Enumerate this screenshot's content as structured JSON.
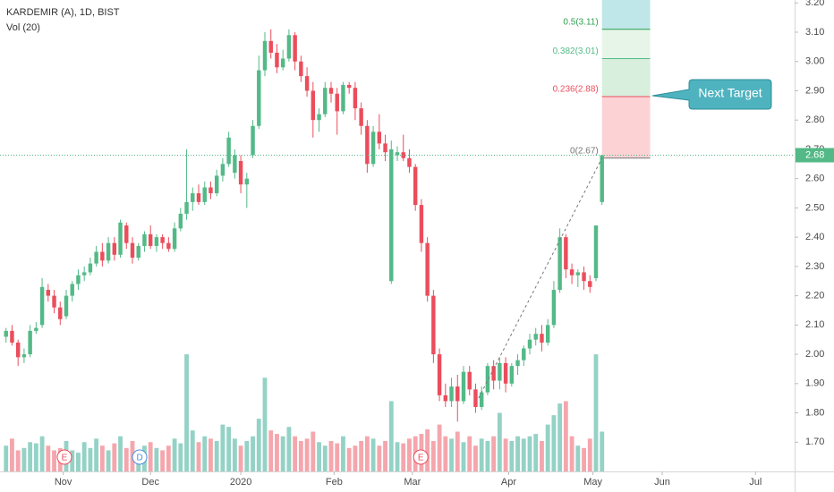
{
  "chart_data": {
    "type": "candlestick",
    "title": "KARDEMIR (A), 1D, BIST",
    "volume_title": "Vol (20)",
    "open": [
      2.06,
      2.08,
      2.04,
      1.99,
      2.0,
      2.08,
      2.1,
      2.22,
      2.2,
      2.16,
      2.13,
      2.2,
      2.24,
      2.27,
      2.28,
      2.31,
      2.35,
      2.32,
      2.38,
      2.34,
      2.44,
      2.38,
      2.33,
      2.37,
      2.41,
      2.37,
      2.4,
      2.38,
      2.36,
      2.43,
      2.48,
      2.52,
      2.55,
      2.52,
      2.57,
      2.55,
      2.61,
      2.65,
      2.62,
      2.66,
      2.58,
      2.68,
      2.78,
      2.97,
      3.07,
      3.03,
      2.98,
      3.01,
      3.09,
      3.0,
      2.95,
      2.9,
      2.8,
      2.82,
      2.91,
      2.89,
      2.83,
      2.92,
      2.91,
      2.84,
      2.78,
      2.65,
      2.76,
      2.72,
      2.25,
      2.68,
      2.69,
      2.67,
      2.64,
      2.51,
      2.38,
      2.2,
      2.0,
      1.86,
      1.84,
      1.89,
      1.84,
      1.94,
      1.88,
      1.82,
      1.87,
      1.96,
      1.91,
      1.97,
      1.9,
      1.96,
      1.98,
      2.02,
      2.05,
      2.07,
      2.04,
      2.1,
      2.22,
      2.4,
      2.29,
      2.27,
      2.28,
      2.25,
      2.26,
      2.52
    ],
    "high": [
      2.09,
      2.1,
      2.05,
      2.02,
      2.1,
      2.11,
      2.26,
      2.24,
      2.22,
      2.18,
      2.22,
      2.25,
      2.29,
      2.3,
      2.33,
      2.37,
      2.38,
      2.4,
      2.4,
      2.46,
      2.45,
      2.4,
      2.38,
      2.42,
      2.44,
      2.41,
      2.41,
      2.4,
      2.45,
      2.5,
      2.7,
      2.57,
      2.58,
      2.59,
      2.59,
      2.63,
      2.67,
      2.76,
      2.7,
      2.68,
      2.62,
      2.8,
      3.02,
      3.1,
      3.11,
      3.06,
      3.04,
      3.11,
      3.1,
      3.02,
      2.98,
      2.93,
      2.84,
      2.93,
      2.93,
      2.91,
      2.93,
      2.93,
      2.93,
      2.86,
      2.8,
      2.78,
      2.82,
      2.75,
      2.73,
      2.71,
      2.75,
      2.7,
      2.65,
      2.53,
      2.4,
      2.22,
      2.02,
      1.9,
      1.92,
      1.93,
      1.96,
      1.96,
      1.9,
      1.89,
      1.97,
      1.98,
      1.99,
      1.99,
      1.97,
      2.0,
      2.03,
      2.07,
      2.09,
      2.1,
      2.12,
      2.25,
      2.43,
      2.41,
      2.31,
      2.29,
      2.3,
      2.27,
      2.44,
      2.68
    ],
    "low": [
      2.04,
      2.03,
      1.96,
      1.97,
      1.99,
      2.07,
      2.09,
      2.18,
      2.14,
      2.1,
      2.12,
      2.18,
      2.22,
      2.25,
      2.27,
      2.3,
      2.3,
      2.31,
      2.32,
      2.33,
      2.36,
      2.31,
      2.32,
      2.35,
      2.36,
      2.35,
      2.36,
      2.35,
      2.35,
      2.42,
      2.46,
      2.49,
      2.51,
      2.51,
      2.53,
      2.54,
      2.59,
      2.64,
      2.6,
      2.55,
      2.5,
      2.67,
      2.77,
      2.95,
      3.01,
      2.96,
      2.97,
      3.0,
      2.97,
      2.93,
      2.88,
      2.74,
      2.76,
      2.81,
      2.86,
      2.75,
      2.82,
      2.89,
      2.8,
      2.75,
      2.62,
      2.64,
      2.7,
      2.66,
      2.24,
      2.66,
      2.66,
      2.62,
      2.49,
      2.35,
      2.18,
      1.97,
      1.84,
      1.82,
      1.82,
      1.77,
      1.83,
      1.86,
      1.8,
      1.81,
      1.86,
      1.88,
      1.88,
      1.87,
      1.89,
      1.93,
      1.96,
      2.0,
      2.03,
      2.01,
      2.03,
      2.09,
      2.21,
      2.26,
      2.24,
      2.23,
      2.22,
      2.21,
      2.25,
      2.51
    ],
    "close": [
      2.08,
      2.04,
      1.99,
      2.0,
      2.08,
      2.09,
      2.23,
      2.2,
      2.16,
      2.12,
      2.2,
      2.24,
      2.27,
      2.28,
      2.31,
      2.35,
      2.32,
      2.38,
      2.34,
      2.45,
      2.38,
      2.33,
      2.37,
      2.41,
      2.37,
      2.4,
      2.38,
      2.36,
      2.43,
      2.48,
      2.52,
      2.55,
      2.52,
      2.57,
      2.55,
      2.61,
      2.65,
      2.74,
      2.68,
      2.58,
      2.6,
      2.78,
      2.97,
      3.07,
      3.03,
      2.98,
      3.01,
      3.09,
      3.0,
      2.95,
      2.9,
      2.8,
      2.82,
      2.91,
      2.89,
      2.83,
      2.92,
      2.91,
      2.84,
      2.78,
      2.65,
      2.76,
      2.72,
      2.69,
      2.7,
      2.69,
      2.67,
      2.64,
      2.51,
      2.38,
      2.2,
      2.0,
      1.86,
      1.84,
      1.89,
      1.84,
      1.94,
      1.88,
      1.82,
      1.87,
      1.96,
      1.91,
      1.97,
      1.9,
      1.96,
      1.98,
      2.02,
      2.05,
      2.07,
      2.04,
      2.1,
      2.22,
      2.4,
      2.29,
      2.27,
      2.28,
      2.25,
      2.23,
      2.44,
      2.68
    ],
    "volume": [
      22,
      28,
      18,
      20,
      25,
      24,
      30,
      22,
      18,
      20,
      26,
      18,
      16,
      25,
      20,
      28,
      22,
      18,
      24,
      30,
      20,
      26,
      18,
      22,
      25,
      20,
      18,
      22,
      28,
      24,
      100,
      35,
      25,
      30,
      28,
      26,
      40,
      38,
      28,
      22,
      26,
      30,
      45,
      80,
      35,
      32,
      30,
      38,
      30,
      26,
      28,
      34,
      25,
      22,
      26,
      24,
      30,
      20,
      22,
      26,
      30,
      28,
      22,
      26,
      60,
      25,
      24,
      28,
      30,
      32,
      36,
      26,
      40,
      30,
      28,
      34,
      25,
      30,
      22,
      28,
      26,
      30,
      50,
      28,
      26,
      30,
      28,
      30,
      32,
      26,
      40,
      48,
      58,
      60,
      30,
      22,
      20,
      28,
      100,
      34
    ],
    "up_color": "#53b987",
    "down_color": "#eb4d5c",
    "volume_up_color": "#94d2c6",
    "volume_down_color": "#f5a6ad",
    "xlim": [
      -1,
      131
    ],
    "xticks": [
      {
        "value": 9.5,
        "label": "Nov"
      },
      {
        "value": 24,
        "label": "Dec"
      },
      {
        "value": 39,
        "label": "2020"
      },
      {
        "value": 54.5,
        "label": "Feb"
      },
      {
        "value": 67.5,
        "label": "Mar"
      },
      {
        "value": 83.5,
        "label": "Apr"
      },
      {
        "value": 97.5,
        "label": "May"
      },
      {
        "value": 109,
        "label": "Jun"
      },
      {
        "value": 124.5,
        "label": "Jul"
      }
    ],
    "ylim": [
      1.6,
      3.21
    ],
    "yticks": [
      {
        "value": 1.7,
        "label": "1.70"
      },
      {
        "value": 1.8,
        "label": "1.80"
      },
      {
        "value": 1.9,
        "label": "1.90"
      },
      {
        "value": 2.0,
        "label": "2.00"
      },
      {
        "value": 2.1,
        "label": "2.10"
      },
      {
        "value": 2.2,
        "label": "2.20"
      },
      {
        "value": 2.3,
        "label": "2.30"
      },
      {
        "value": 2.4,
        "label": "2.40"
      },
      {
        "value": 2.5,
        "label": "2.50"
      },
      {
        "value": 2.6,
        "label": "2.60"
      },
      {
        "value": 2.7,
        "label": "2.70"
      },
      {
        "value": 2.8,
        "label": "2.80"
      },
      {
        "value": 2.9,
        "label": "2.90"
      },
      {
        "value": 3.0,
        "label": "3.00"
      },
      {
        "value": 3.1,
        "label": "3.10"
      },
      {
        "value": 3.2,
        "label": "3.20"
      }
    ],
    "current_price": 2.68,
    "events": [
      {
        "label": "E",
        "x": 9.7
      },
      {
        "label": "D",
        "x": 22.2
      },
      {
        "label": "E",
        "x": 68.9
      }
    ],
    "trend_line": [
      [
        78.5,
        1.85
      ],
      [
        99,
        2.67
      ]
    ],
    "fib_x": [
      99,
      107
    ],
    "fib_levels": [
      {
        "price": 2.67,
        "label": "0(2.67)",
        "color": "#777777"
      },
      {
        "price": 2.88,
        "label": "0.236(2.88)",
        "color": "#eb4d5c"
      },
      {
        "price": 3.01,
        "label": "0.382(3.01)",
        "color": "#53b987"
      },
      {
        "price": 3.11,
        "label": "0.5(3.11)",
        "color": "#2e9e4f"
      }
    ],
    "callout": "Next Target"
  }
}
